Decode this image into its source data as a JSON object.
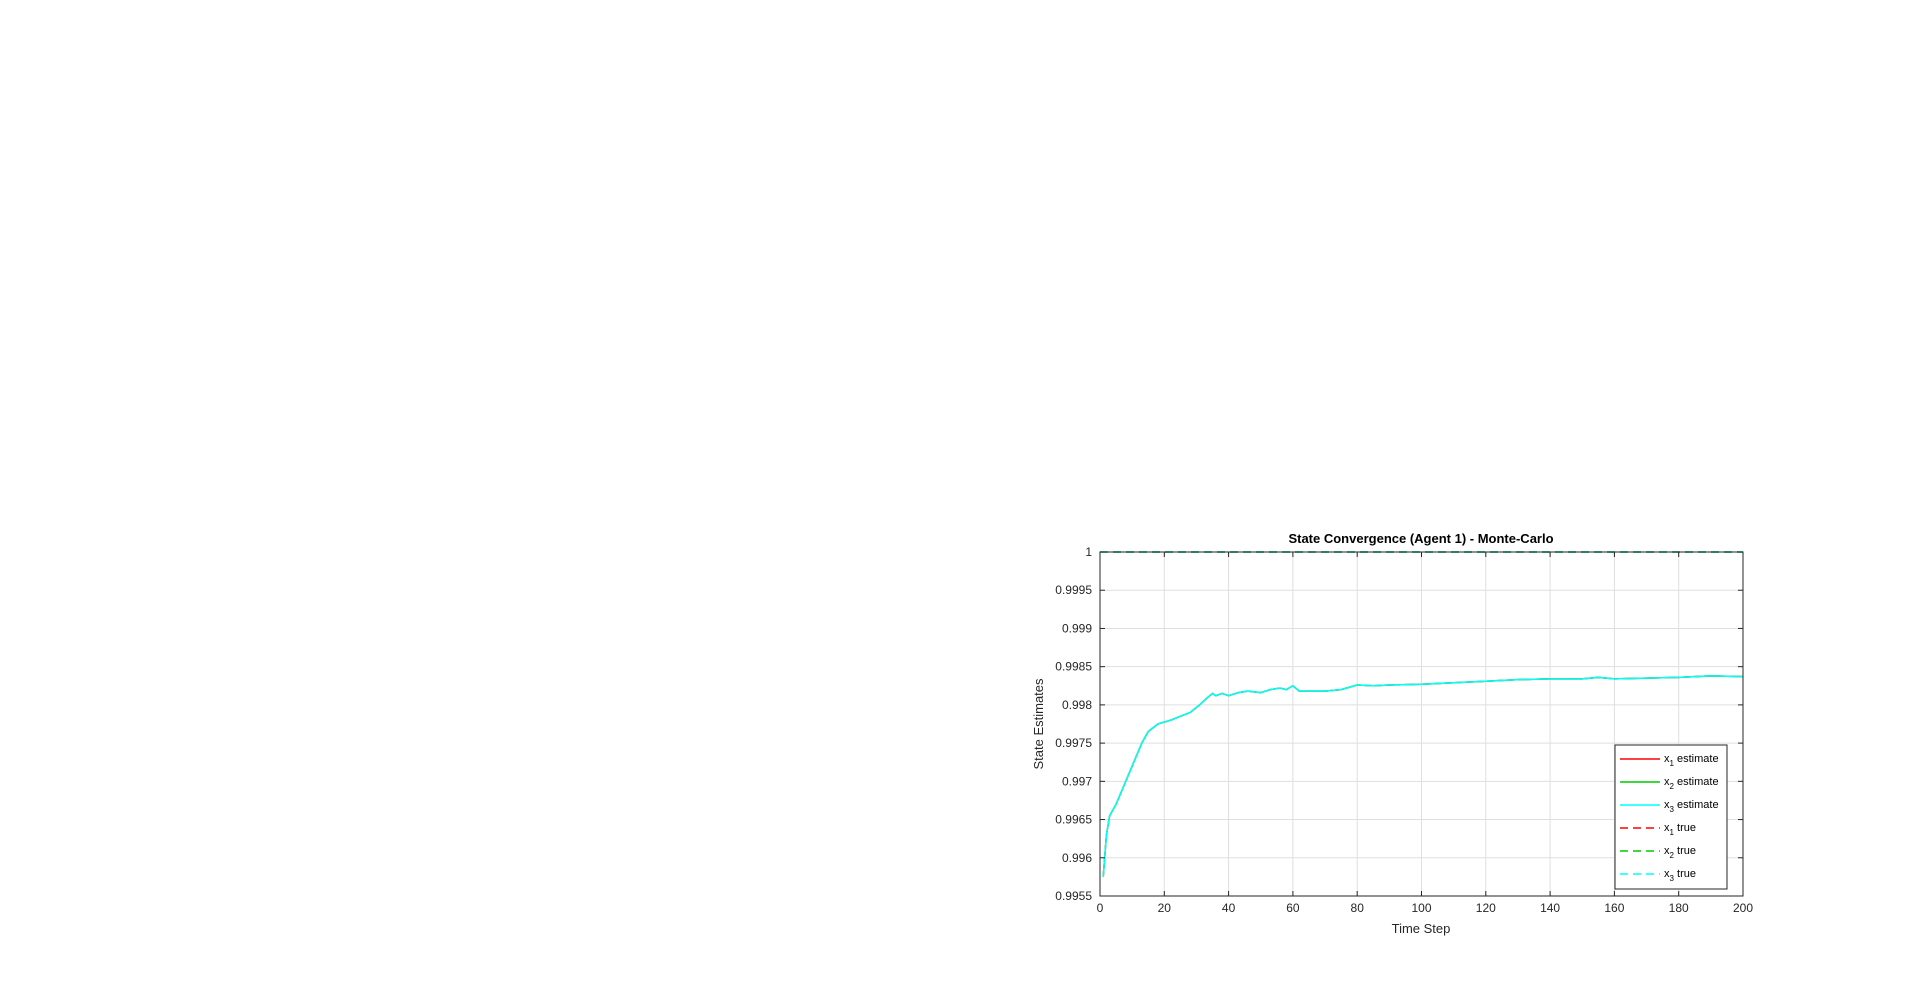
{
  "chart_data": {
    "type": "line",
    "title": "State Convergence (Agent 1) - Monte-Carlo",
    "xlabel": "Time Step",
    "ylabel": "State Estimates",
    "xlim": [
      0,
      200
    ],
    "ylim": [
      0.9955,
      1.0
    ],
    "xticks": [
      0,
      20,
      40,
      60,
      80,
      100,
      120,
      140,
      160,
      180,
      200
    ],
    "xtick_labels": [
      "0",
      "20",
      "40",
      "60",
      "80",
      "100",
      "120",
      "140",
      "160",
      "180",
      "200"
    ],
    "yticks": [
      0.9955,
      0.996,
      0.9965,
      0.997,
      0.9975,
      0.998,
      0.9985,
      0.999,
      0.9995,
      1.0
    ],
    "ytick_labels": [
      "0.9955",
      "0.996",
      "0.9965",
      "0.997",
      "0.9975",
      "0.998",
      "0.9985",
      "0.999",
      "0.9995",
      "1"
    ],
    "grid": true,
    "legend_position": "bottom-right",
    "series": [
      {
        "name": "x1 estimate",
        "label_main": "x",
        "label_sub": "1",
        "label_rest": " estimate",
        "color": "#ff0000",
        "dash": "solid",
        "x": [
          1,
          2,
          3,
          5,
          7,
          10,
          13,
          15,
          18,
          22,
          25,
          28,
          31,
          33,
          35,
          36,
          38,
          40,
          43,
          46,
          50,
          53,
          56,
          58,
          60,
          62,
          65,
          70,
          75,
          80,
          85,
          90,
          100,
          110,
          120,
          130,
          140,
          150,
          155,
          160,
          170,
          180,
          190,
          200
        ],
        "y": [
          0.99575,
          0.9963,
          0.99655,
          0.9967,
          0.9969,
          0.9972,
          0.9975,
          0.99765,
          0.99775,
          0.9978,
          0.99785,
          0.9979,
          0.998,
          0.99808,
          0.99815,
          0.99812,
          0.99815,
          0.99812,
          0.99816,
          0.99818,
          0.99816,
          0.9982,
          0.99822,
          0.9982,
          0.99825,
          0.99818,
          0.99818,
          0.99818,
          0.9982,
          0.99826,
          0.99825,
          0.99826,
          0.99827,
          0.99829,
          0.99831,
          0.99833,
          0.99834,
          0.99834,
          0.99836,
          0.99834,
          0.99835,
          0.99836,
          0.99838,
          0.99837
        ]
      },
      {
        "name": "x2 estimate",
        "label_main": "x",
        "label_sub": "2",
        "label_rest": " estimate",
        "color": "#00cc00",
        "dash": "solid",
        "x": [
          1,
          2,
          3,
          5,
          7,
          10,
          13,
          15,
          18,
          22,
          25,
          28,
          31,
          33,
          35,
          36,
          38,
          40,
          43,
          46,
          50,
          53,
          56,
          58,
          60,
          62,
          65,
          70,
          75,
          80,
          85,
          90,
          100,
          110,
          120,
          130,
          140,
          150,
          155,
          160,
          170,
          180,
          190,
          200
        ],
        "y": [
          0.99575,
          0.9963,
          0.99655,
          0.9967,
          0.9969,
          0.9972,
          0.9975,
          0.99765,
          0.99775,
          0.9978,
          0.99785,
          0.9979,
          0.998,
          0.99808,
          0.99815,
          0.99812,
          0.99815,
          0.99812,
          0.99816,
          0.99818,
          0.99816,
          0.9982,
          0.99822,
          0.9982,
          0.99825,
          0.99818,
          0.99818,
          0.99818,
          0.9982,
          0.99826,
          0.99825,
          0.99826,
          0.99827,
          0.99829,
          0.99831,
          0.99833,
          0.99834,
          0.99834,
          0.99836,
          0.99834,
          0.99835,
          0.99836,
          0.99838,
          0.99837
        ]
      },
      {
        "name": "x3 estimate",
        "label_main": "x",
        "label_sub": "3",
        "label_rest": " estimate",
        "color": "#00ffff",
        "dash": "solid",
        "x": [
          1,
          2,
          3,
          5,
          7,
          10,
          13,
          15,
          18,
          22,
          25,
          28,
          31,
          33,
          35,
          36,
          38,
          40,
          43,
          46,
          50,
          53,
          56,
          58,
          60,
          62,
          65,
          70,
          75,
          80,
          85,
          90,
          100,
          110,
          120,
          130,
          140,
          150,
          155,
          160,
          170,
          180,
          190,
          200
        ],
        "y": [
          0.99575,
          0.9963,
          0.99655,
          0.9967,
          0.9969,
          0.9972,
          0.9975,
          0.99765,
          0.99775,
          0.9978,
          0.99785,
          0.9979,
          0.998,
          0.99808,
          0.99815,
          0.99812,
          0.99815,
          0.99812,
          0.99816,
          0.99818,
          0.99816,
          0.9982,
          0.99822,
          0.9982,
          0.99825,
          0.99818,
          0.99818,
          0.99818,
          0.9982,
          0.99826,
          0.99825,
          0.99826,
          0.99827,
          0.99829,
          0.99831,
          0.99833,
          0.99834,
          0.99834,
          0.99836,
          0.99834,
          0.99835,
          0.99836,
          0.99838,
          0.99837
        ]
      },
      {
        "name": "x1 true",
        "label_main": "x",
        "label_sub": "1",
        "label_rest": " true",
        "color": "#ff0000",
        "dash": "dashed",
        "x": [
          0,
          200
        ],
        "y": [
          1.0,
          1.0
        ]
      },
      {
        "name": "x2 true",
        "label_main": "x",
        "label_sub": "2",
        "label_rest": " true",
        "color": "#00cc00",
        "dash": "dashed",
        "x": [
          0,
          200
        ],
        "y": [
          1.0,
          1.0
        ]
      },
      {
        "name": "x3 true",
        "label_main": "x",
        "label_sub": "3",
        "label_rest": " true",
        "color": "#00ffff",
        "dash": "dashed",
        "x": [
          0,
          200
        ],
        "y": [
          1.0,
          1.0
        ]
      }
    ]
  }
}
